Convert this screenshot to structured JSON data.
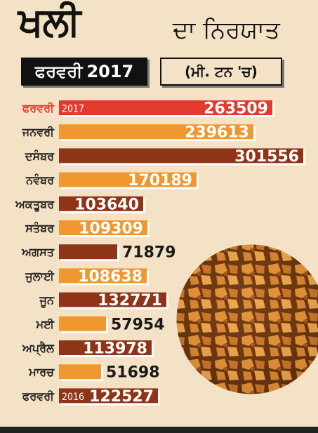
{
  "header": {
    "title_main": "ਖਲੀ",
    "title_sub": "ਦਾ ਨਿਰਯਾਤ",
    "period_month": "ਫਰਵਰੀ",
    "period_year": "2017",
    "unit": "(ਮੀ. ਟਨ 'ਚ)"
  },
  "colors": {
    "highlight": "#e23b2e",
    "orange": "#f0972f",
    "brown": "#8f3418"
  },
  "chart_data": {
    "type": "bar",
    "orientation": "horizontal",
    "categories": [
      "ਫਰਵਰੀ",
      "ਜਨਵਰੀ",
      "ਦਸੰਬਰ",
      "ਨਵੰਬਰ",
      "ਅਕਤੂਬਰ",
      "ਸਤੰਬਰ",
      "ਅਗਸਤ",
      "ਜੁਲਾਈ",
      "ਜੂਨ",
      "ਮਈ",
      "ਅਪ੍ਰੈਲ",
      "ਮਾਰਚ",
      "ਫਰਵਰੀ"
    ],
    "year_tags": [
      "2017",
      "",
      "",
      "",
      "",
      "",
      "",
      "",
      "",
      "",
      "",
      "",
      "2016"
    ],
    "values": [
      263509,
      239613,
      301556,
      170189,
      103640,
      109309,
      71879,
      108638,
      132771,
      57954,
      113978,
      51698,
      122527
    ],
    "bar_colors": [
      "#e23b2e",
      "#f0972f",
      "#8f3418",
      "#f0972f",
      "#8f3418",
      "#f0972f",
      "#8f3418",
      "#f0972f",
      "#8f3418",
      "#f0972f",
      "#8f3418",
      "#f0972f",
      "#8f3418"
    ],
    "xlim": [
      0,
      301556
    ]
  }
}
